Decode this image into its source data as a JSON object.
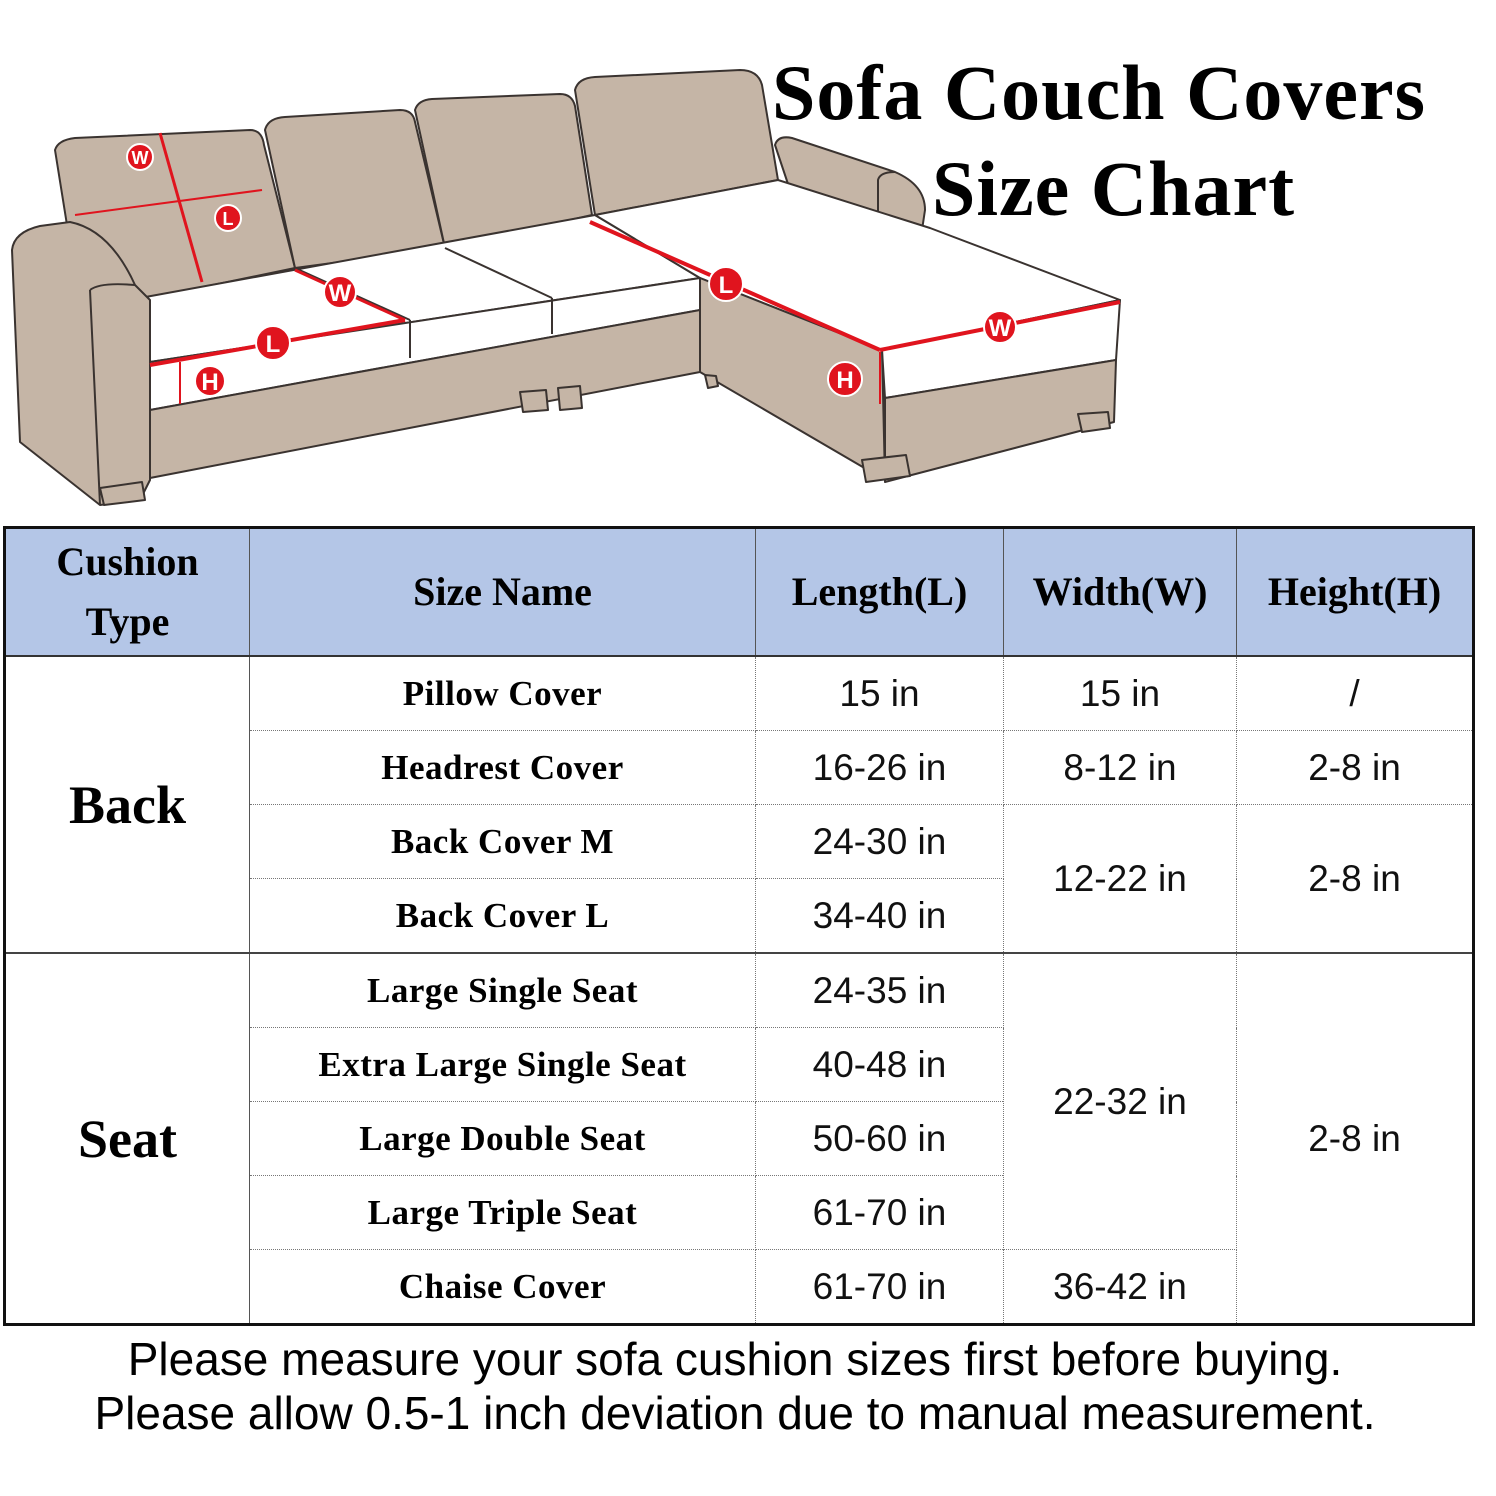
{
  "title": {
    "line1": "Sofa Couch Covers",
    "line2": "Size Chart"
  },
  "diagram": {
    "labels": {
      "width": "W",
      "length": "L",
      "height": "H"
    },
    "colors": {
      "sofa": "#c5b5a6",
      "cushion_top": "#ffffff",
      "measure": "#e0141e"
    }
  },
  "table": {
    "headers": [
      "Cushion Type",
      "Size Name",
      "Length(L)",
      "Width(W)",
      "Height(H)"
    ],
    "header_bg": "#b4c6e7",
    "groups": [
      {
        "type": "Back",
        "rows": [
          {
            "name": "Pillow Cover",
            "length": "15 in",
            "width": "15 in",
            "height": "/"
          },
          {
            "name": "Headrest Cover",
            "length": "16-26 in",
            "width": "8-12 in",
            "height": "2-8 in"
          },
          {
            "name": "Back Cover M",
            "length": "24-30 in",
            "width": "12-22 in",
            "height": "2-8 in"
          },
          {
            "name": "Back Cover L",
            "length": "34-40 in"
          }
        ]
      },
      {
        "type": "Seat",
        "rows": [
          {
            "name": "Large Single Seat",
            "length": "24-35 in",
            "width": "22-32 in",
            "height": "2-8 in"
          },
          {
            "name": "Extra Large Single Seat",
            "length": "40-48 in"
          },
          {
            "name": "Large Double Seat",
            "length": "50-60 in"
          },
          {
            "name": "Large Triple Seat",
            "length": "61-70 in"
          },
          {
            "name": "Chaise Cover",
            "length": "61-70 in",
            "width": "36-42 in"
          }
        ]
      }
    ]
  },
  "footer": {
    "line1": "Please measure your sofa cushion sizes first before buying.",
    "line2": "Please allow 0.5-1 inch deviation due to manual measurement."
  }
}
